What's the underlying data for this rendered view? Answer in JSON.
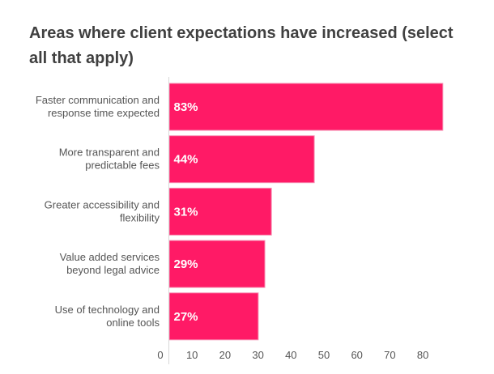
{
  "chart_data": {
    "type": "bar",
    "orientation": "horizontal",
    "title": "Areas where client expectations have increased (select all that apply)",
    "categories": [
      [
        "Faster communication and",
        "response time expected"
      ],
      [
        "More transparent and",
        "predictable fees"
      ],
      [
        "Greater accessibility and",
        "flexibility"
      ],
      [
        "Value added services",
        "beyond legal advice"
      ],
      [
        "Use of technology and",
        "online tools"
      ]
    ],
    "values": [
      83,
      44,
      31,
      29,
      27
    ],
    "data_labels": [
      "83%",
      "44%",
      "31%",
      "29%",
      "27%"
    ],
    "xlabel": "",
    "ylabel": "",
    "xlim": [
      0,
      85
    ],
    "xticks": [
      0,
      10,
      20,
      30,
      40,
      50,
      60,
      70,
      80
    ],
    "grid": false,
    "legend": "none",
    "colors": {
      "bar": "#FF1A66",
      "bar_outline": "#F78FB3",
      "axis": "#D9D9D9"
    }
  }
}
